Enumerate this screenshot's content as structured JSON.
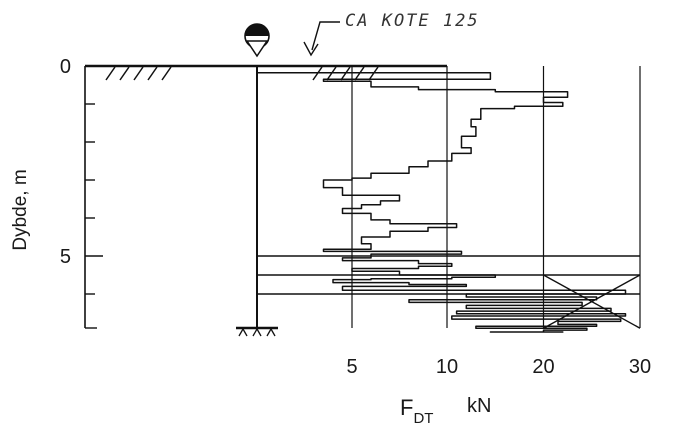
{
  "chart_data": {
    "type": "line",
    "annotation": "CA KOTE 125",
    "ylabel": "Dybde, m",
    "xlabel": "F",
    "xlabel_subscript": "DT",
    "xunit": "kN",
    "y_ticks": [
      "0",
      "5"
    ],
    "x_ticks": [
      "5",
      "10",
      "20",
      "30"
    ],
    "yaxis": "depth, increasing downward",
    "ylim": [
      0,
      7.0
    ],
    "xlim": [
      0,
      30
    ],
    "x_scale": "piecewise linear: 0-10 kN and 10-30 kN at different scales",
    "grid": "vertical lines at 5, 10, 20, 30 kN",
    "series": [
      {
        "x": [
          0,
          4,
          14.5,
          3.5,
          6,
          8.5,
          15,
          22.5,
          20,
          22,
          17,
          13.5,
          12.5,
          13,
          11.5,
          12.5,
          10.5,
          9,
          8,
          6,
          5,
          3.5,
          4.5,
          7.5,
          6.5,
          5.5,
          4.5,
          6,
          7,
          11,
          9,
          7,
          5.5,
          6,
          3.5,
          11.5,
          6,
          4.5,
          8.5,
          10.5,
          8.5,
          5,
          7.5,
          15,
          10.5,
          6,
          4,
          8,
          12,
          4.5,
          28.5,
          12,
          25.5,
          8,
          24,
          12,
          27,
          11,
          28.5,
          10.5,
          28,
          21.5,
          25.5,
          13,
          24.5,
          20,
          22,
          16.5,
          19,
          14.5,
          21,
          19,
          20
        ],
        "y": [
          0.0,
          0.18,
          0.18,
          0.35,
          0.4,
          0.55,
          0.62,
          0.68,
          0.82,
          0.96,
          1.06,
          1.12,
          1.4,
          1.6,
          1.85,
          2.15,
          2.3,
          2.5,
          2.65,
          2.82,
          2.95,
          3.0,
          3.2,
          3.4,
          3.55,
          3.65,
          3.75,
          3.88,
          4.05,
          4.15,
          4.25,
          4.35,
          4.5,
          4.68,
          4.82,
          4.88,
          4.95,
          5.05,
          5.12,
          5.2,
          5.27,
          5.33,
          5.4,
          5.5,
          5.56,
          5.6,
          5.62,
          5.7,
          5.75,
          5.8,
          5.9,
          6.0,
          6.08,
          6.15,
          6.22,
          6.3,
          6.38,
          6.45,
          6.52,
          6.58,
          6.66,
          6.72,
          6.8,
          6.85,
          6.9,
          6.95,
          7.0,
          7.0,
          7.0,
          7.0,
          7.0,
          7.0,
          7.0
        ]
      }
    ]
  }
}
